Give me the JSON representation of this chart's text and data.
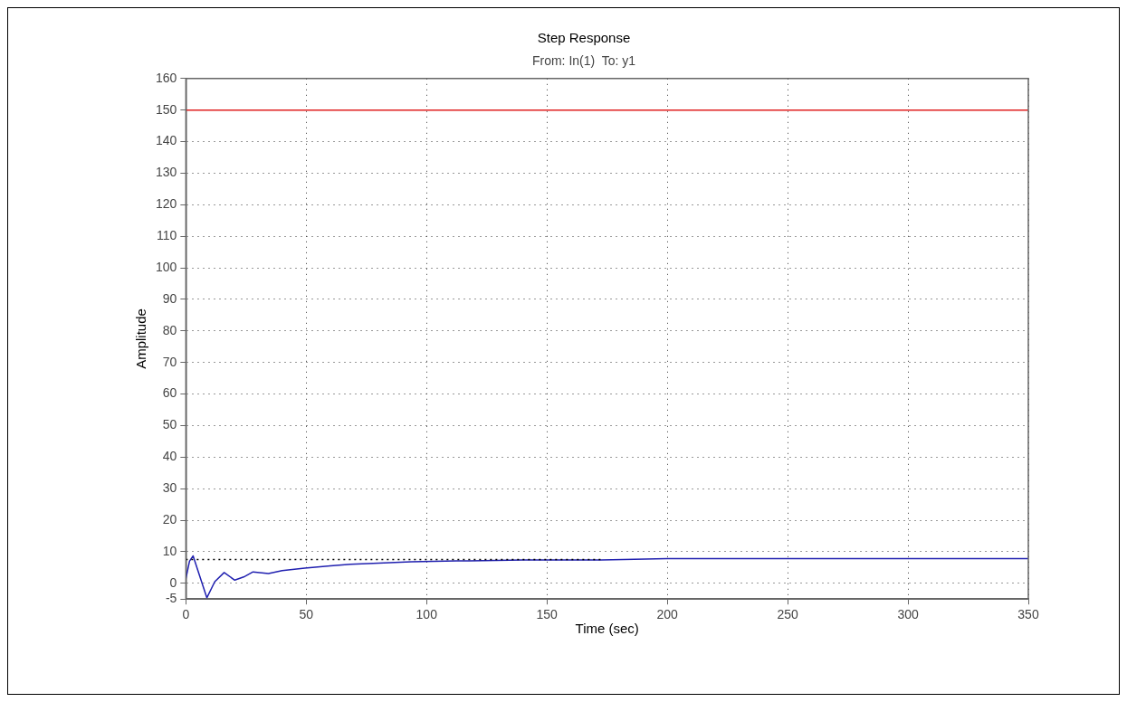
{
  "chart_data": {
    "type": "line",
    "title": "Step Response",
    "subtitle": "From: In(1)  To: y1",
    "xlabel": "Time (sec)",
    "ylabel": "Amplitude",
    "xlim": [
      0,
      350
    ],
    "xticks": [
      0,
      50,
      100,
      150,
      200,
      250,
      300,
      350
    ],
    "ylim": [
      -5,
      160
    ],
    "yticks": [
      -5,
      0,
      10,
      20,
      30,
      40,
      50,
      60,
      70,
      80,
      90,
      100,
      110,
      120,
      130,
      140,
      150,
      160
    ],
    "grid": true,
    "legend": false,
    "marker": "none",
    "series": [
      {
        "color": "#e02020",
        "x": [
          0,
          350
        ],
        "values": [
          150,
          150
        ],
        "line_style": "solid"
      },
      {
        "color": "#000000",
        "x": [
          0,
          173
        ],
        "values": [
          7.5,
          7.5
        ],
        "line_style": "dotted"
      },
      {
        "color": "#2020b0",
        "x": [
          0,
          1.5,
          3,
          5,
          8.7,
          12,
          15.9,
          20.3,
          24,
          27.9,
          34.3,
          40,
          49.4,
          60,
          68.4,
          80,
          93.6,
          112.5,
          117.6,
          140,
          172.5,
          200,
          250,
          300,
          350
        ],
        "values": [
          1.5,
          7,
          8.7,
          4,
          -4.6,
          0.5,
          3.4,
          1,
          2,
          3.6,
          3.1,
          4,
          4.8,
          5.5,
          6,
          6.4,
          6.8,
          7.1,
          7.1,
          7.4,
          7.4,
          7.8,
          7.8,
          7.8,
          7.8
        ],
        "line_style": "solid"
      }
    ]
  }
}
